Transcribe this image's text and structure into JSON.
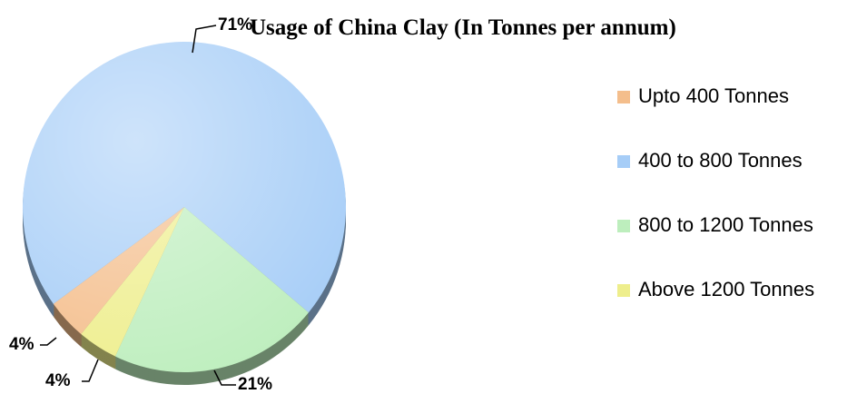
{
  "chart_data": {
    "type": "pie",
    "title": "Usage of China Clay  (In Tonnes per annum)",
    "categories": [
      "Upto 400 Tonnes",
      "400 to 800 Tonnes",
      "800 to 1200 Tonnes",
      "Above 1200 Tonnes"
    ],
    "values": [
      4,
      71,
      21,
      4
    ],
    "value_labels": [
      "4%",
      "71%",
      "21%",
      "4%"
    ],
    "colors": [
      "#f4be8c",
      "#a6cdf7",
      "#bdeebd",
      "#eeee8c"
    ],
    "legend": "right"
  }
}
